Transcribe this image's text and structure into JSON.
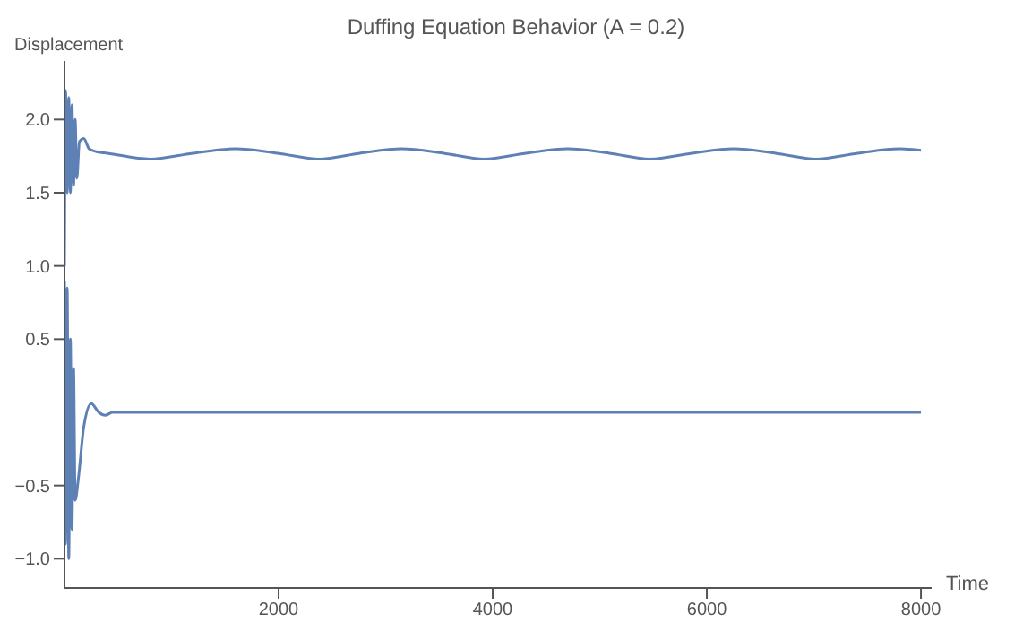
{
  "chart_data": {
    "type": "line",
    "title": "Duffing Equation Behavior (A = 0.2)",
    "xlabel": "Time",
    "ylabel": "Displacement",
    "xlim": [
      0,
      8100
    ],
    "xticks": [
      2000,
      4000,
      6000,
      8000
    ],
    "ylim": [
      -1.2,
      2.4
    ],
    "yticks": [
      {
        "value": -1,
        "label": "−1.0"
      },
      {
        "value": -0.5,
        "label": "−0.5"
      },
      0.5,
      {
        "value": 1,
        "label": "1.0"
      },
      1.5,
      {
        "value": 2,
        "label": "2.0"
      }
    ],
    "grid": false,
    "legend": false,
    "marker": "none",
    "line_style": "solid",
    "series": [
      {
        "color": "#5e81b5",
        "x": [
          0,
          10,
          25,
          40,
          55,
          70,
          85,
          100,
          115,
          140,
          180,
          230,
          300,
          400,
          800,
          1200,
          1600,
          1990,
          2380,
          2760,
          3150,
          3540,
          3920,
          4310,
          4700,
          5090,
          5470,
          5860,
          6250,
          6640,
          7020,
          7410,
          7800,
          8000
        ],
        "values": [
          1.0,
          2.2,
          1.5,
          2.15,
          1.5,
          2.1,
          1.55,
          2.0,
          1.6,
          1.85,
          1.87,
          1.8,
          1.78,
          1.77,
          1.73,
          1.77,
          1.8,
          1.77,
          1.73,
          1.77,
          1.8,
          1.77,
          1.73,
          1.77,
          1.8,
          1.77,
          1.73,
          1.77,
          1.8,
          1.77,
          1.73,
          1.77,
          1.8,
          1.79
        ]
      },
      {
        "color": "#5e81b5",
        "x": [
          0,
          10,
          25,
          40,
          55,
          70,
          85,
          100,
          130,
          180,
          250,
          320,
          380,
          450,
          8000
        ],
        "values": [
          0.9,
          -0.9,
          0.85,
          -1.0,
          0.5,
          -0.8,
          0.3,
          -0.6,
          -0.45,
          -0.1,
          0.06,
          0.0,
          -0.02,
          0.0,
          0.0
        ]
      }
    ]
  }
}
